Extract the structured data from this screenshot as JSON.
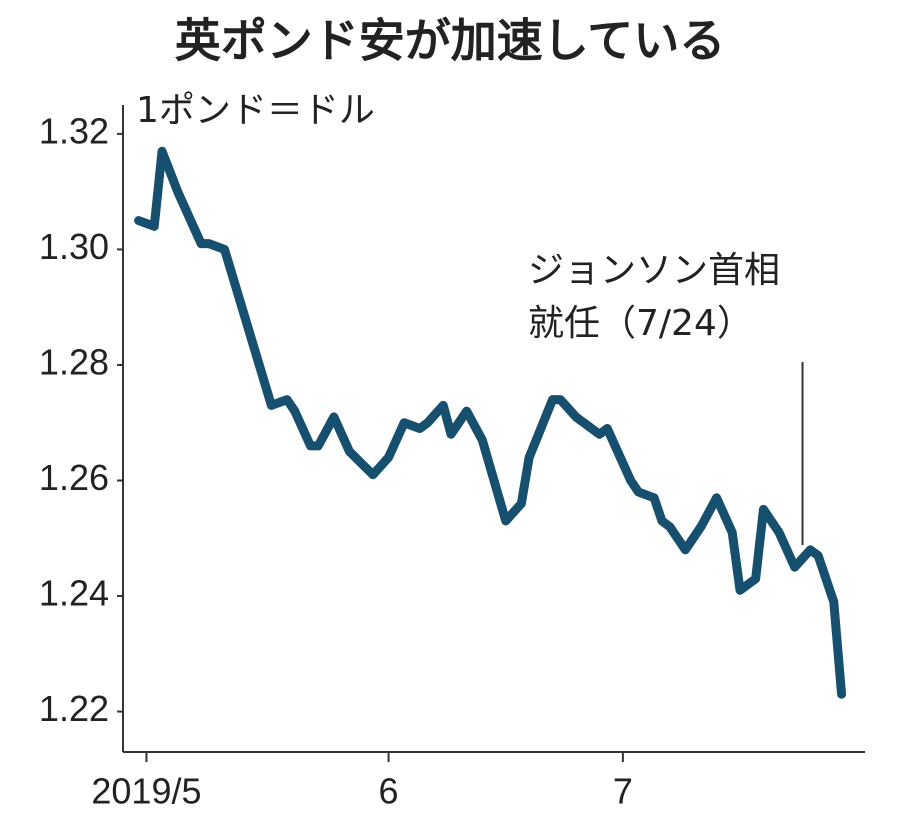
{
  "chart_data": {
    "type": "line",
    "title": "英ポンド安が加速している",
    "subtitle": "1ポンド＝ドル",
    "annotation": {
      "lines": [
        "ジョンソン首相",
        "就任（7/24）"
      ],
      "x": 84
    },
    "xlim": [
      -3,
      92
    ],
    "xticks": [
      {
        "value": 0,
        "label": "2019/5"
      },
      {
        "value": 31,
        "label": "6"
      },
      {
        "value": 61,
        "label": "7"
      }
    ],
    "ylim": [
      1.213,
      1.325
    ],
    "yticks": [
      1.22,
      1.24,
      1.26,
      1.28,
      {
        "value": 1.3,
        "label": "1.30"
      },
      1.32
    ],
    "x": [
      -1,
      1,
      2,
      4,
      5,
      7,
      8,
      10,
      12,
      14,
      16,
      18,
      19,
      21,
      22,
      24,
      26,
      29,
      31,
      33,
      35,
      36,
      38,
      39,
      41,
      43,
      46,
      48,
      49,
      52,
      53,
      55,
      58,
      59,
      62,
      63,
      65,
      66,
      67,
      69,
      71,
      73,
      75,
      76,
      78,
      79,
      81,
      83,
      85,
      86,
      88,
      89
    ],
    "series": [
      {
        "color": "#174f6e",
        "values": [
          1.305,
          1.304,
          1.317,
          1.31,
          1.307,
          1.301,
          1.301,
          1.3,
          1.291,
          1.282,
          1.273,
          1.274,
          1.272,
          1.266,
          1.266,
          1.271,
          1.265,
          1.261,
          1.264,
          1.27,
          1.269,
          1.27,
          1.273,
          1.268,
          1.272,
          1.267,
          1.253,
          1.256,
          1.264,
          1.274,
          1.274,
          1.271,
          1.268,
          1.269,
          1.26,
          1.258,
          1.257,
          1.253,
          1.252,
          1.248,
          1.252,
          1.257,
          1.251,
          1.241,
          1.243,
          1.255,
          1.251,
          1.245,
          1.248,
          1.247,
          1.239,
          1.223
        ]
      }
    ]
  }
}
